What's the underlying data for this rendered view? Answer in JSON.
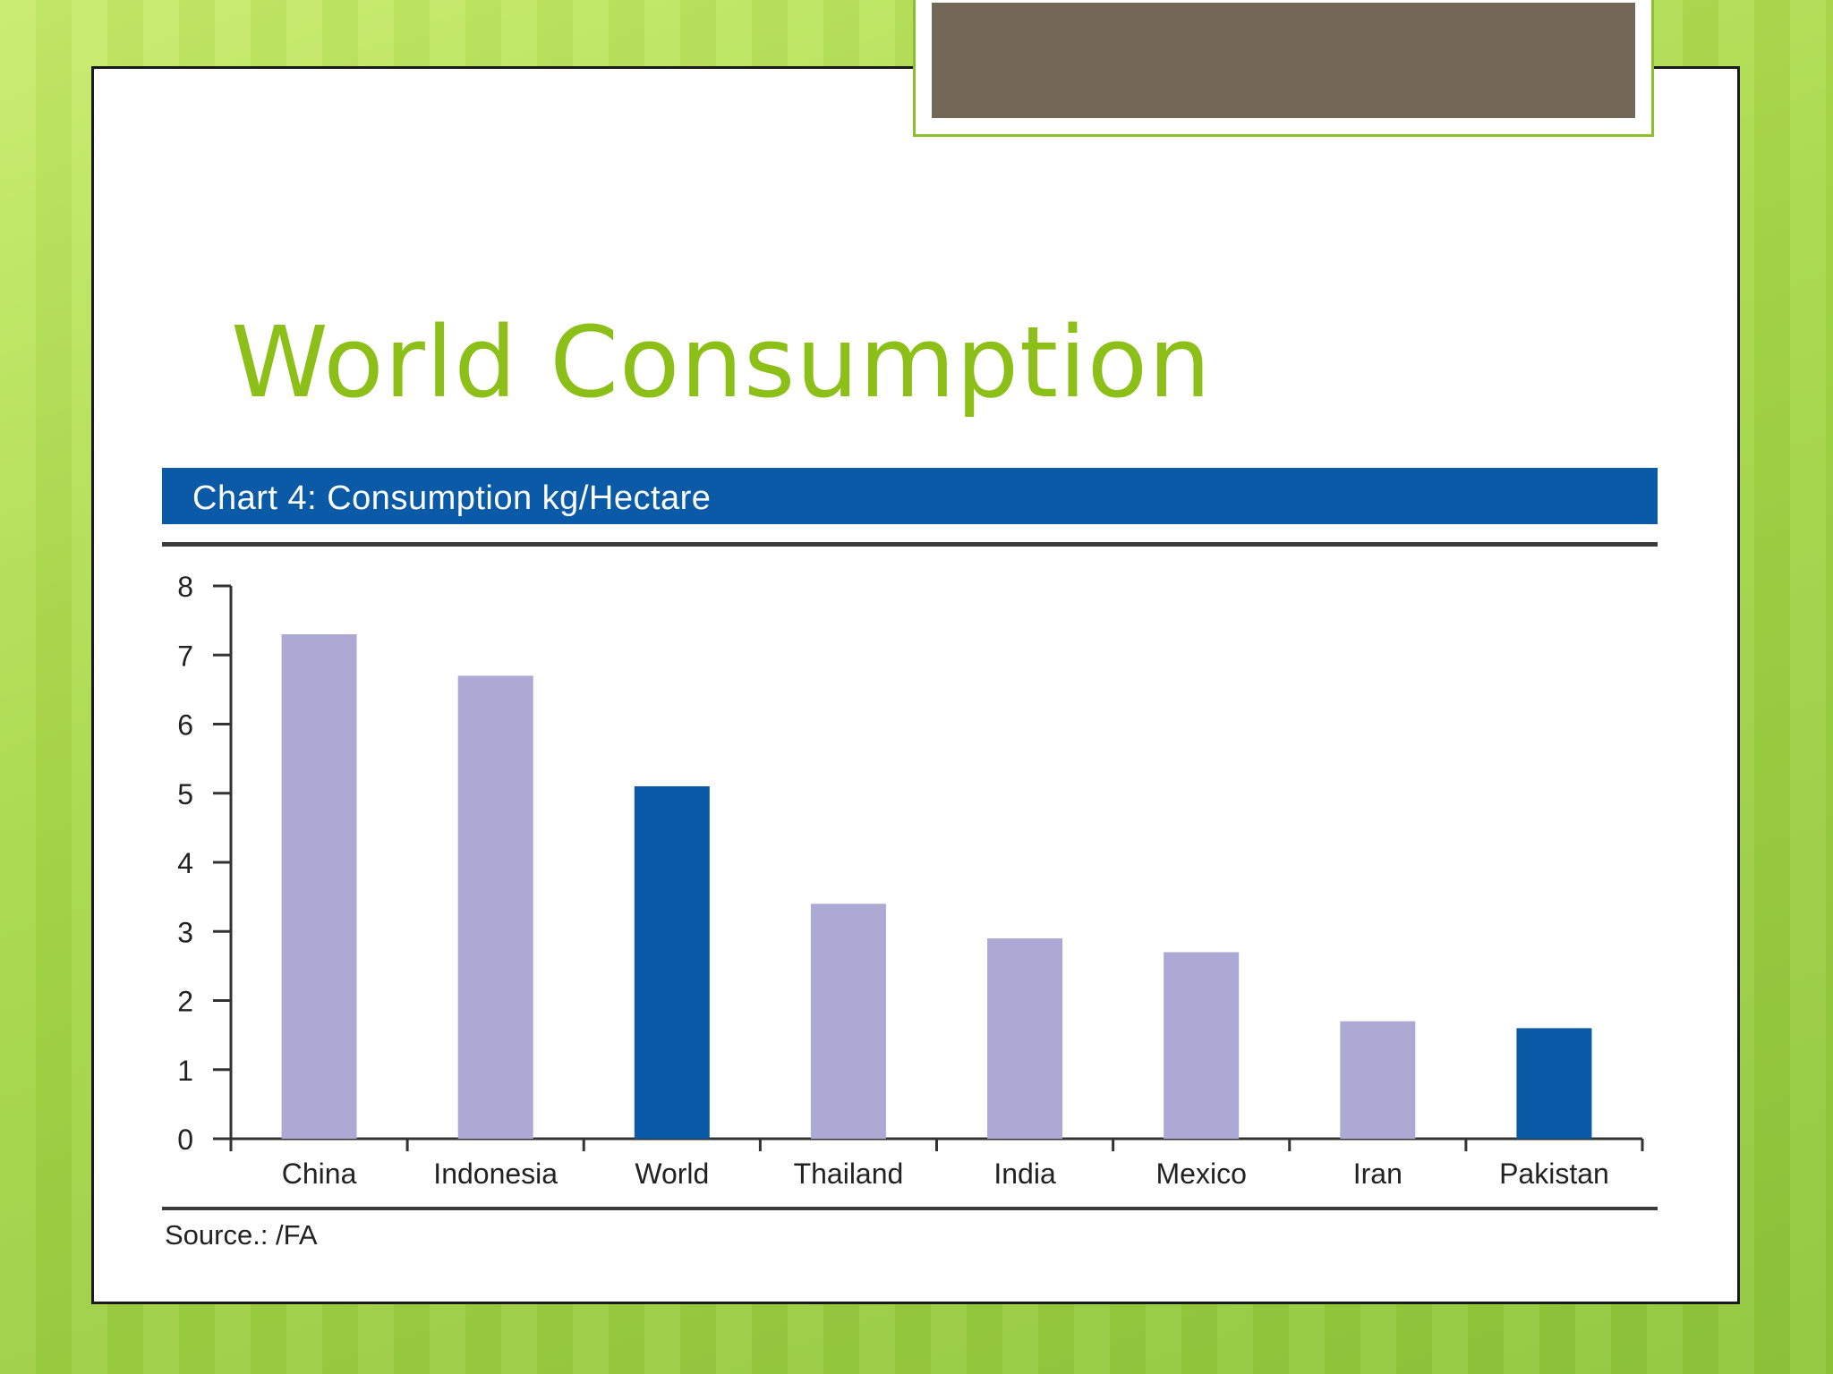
{
  "slide": {
    "title": "World Consumption"
  },
  "chart_data": {
    "type": "bar",
    "title": "Chart 4: Consumption kg/Hectare",
    "categories": [
      "China",
      "Indonesia",
      "World",
      "Thailand",
      "India",
      "Mexico",
      "Iran",
      "Pakistan"
    ],
    "values": [
      7.3,
      6.7,
      5.1,
      3.4,
      2.9,
      2.7,
      1.7,
      1.6
    ],
    "highlight_categories": [
      "World",
      "Pakistan"
    ],
    "ylim": [
      0,
      8
    ],
    "yticks": [
      0,
      1,
      2,
      3,
      4,
      5,
      6,
      7,
      8
    ],
    "xlabel": "",
    "ylabel": "",
    "grid": false,
    "source": "Source.: /FA",
    "colors": {
      "bar": "#ada8d4",
      "highlight": "#0a5aa8",
      "banner": "#0a5aa8",
      "title": "#8cbf17"
    }
  }
}
